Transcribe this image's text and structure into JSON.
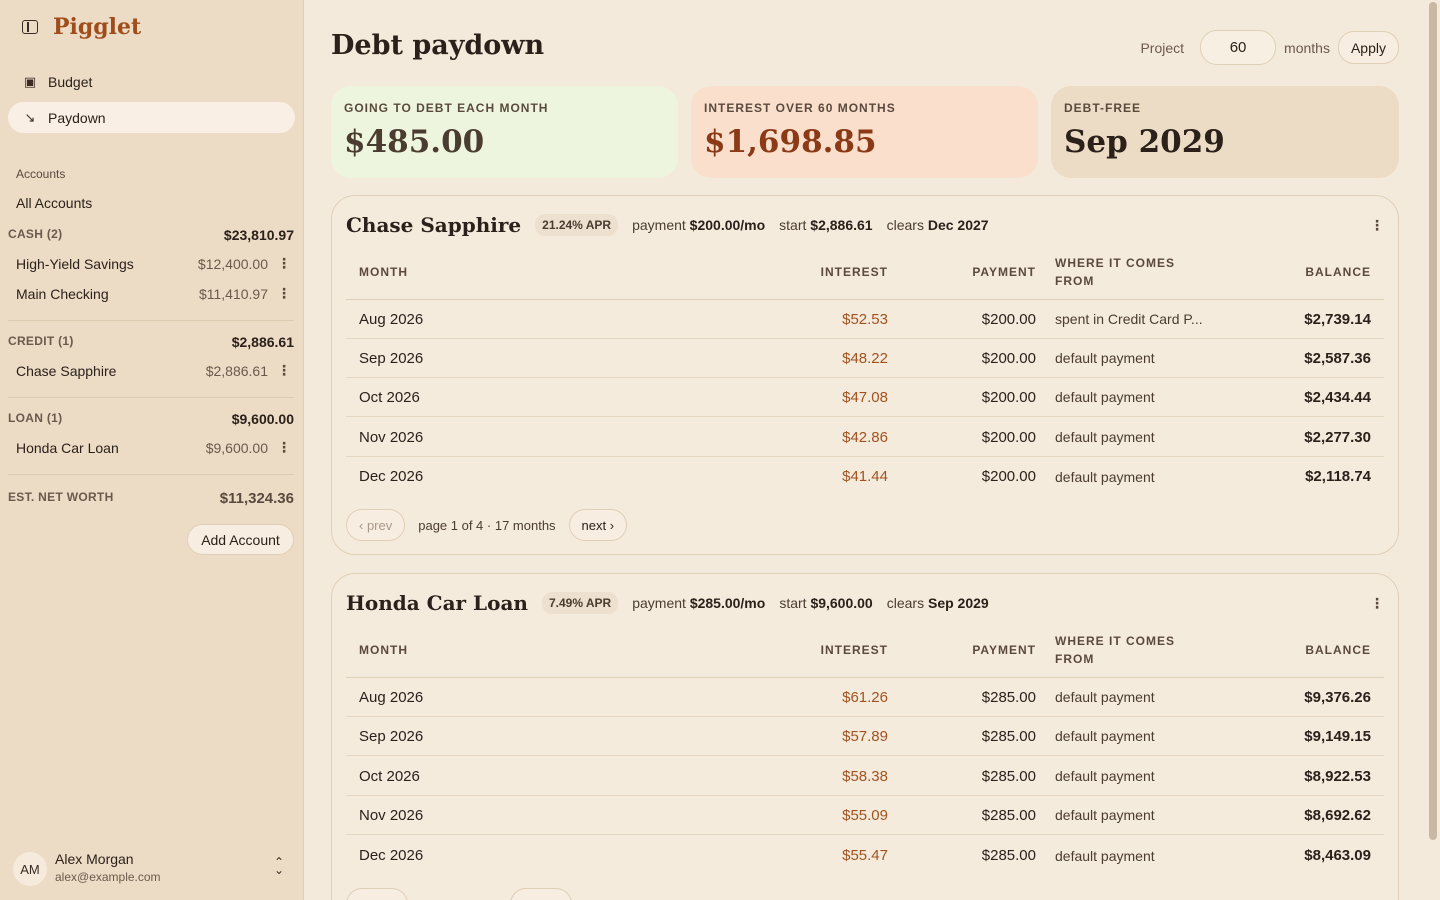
{
  "app": {
    "name": "Pigglet"
  },
  "nav": [
    {
      "label": "Budget",
      "icon": "budget-icon"
    },
    {
      "label": "Paydown",
      "icon": "trend-down-icon",
      "active": true
    }
  ],
  "sidebar": {
    "accounts_label": "Accounts",
    "all_accounts": "All Accounts",
    "groups": [
      {
        "label": "CASH (2)",
        "total": "$23,810.97",
        "items": [
          {
            "name": "High-Yield Savings",
            "amount": "$12,400.00"
          },
          {
            "name": "Main Checking",
            "amount": "$11,410.97"
          }
        ]
      },
      {
        "label": "CREDIT (1)",
        "total": "$2,886.61",
        "items": [
          {
            "name": "Chase Sapphire",
            "amount": "$2,886.61"
          }
        ]
      },
      {
        "label": "LOAN (1)",
        "total": "$9,600.00",
        "items": [
          {
            "name": "Honda Car Loan",
            "amount": "$9,600.00"
          }
        ]
      }
    ],
    "net_worth_label": "EST. NET WORTH",
    "net_worth": "$11,324.36",
    "add_account": "Add Account",
    "user": {
      "initials": "AM",
      "name": "Alex Morgan",
      "email": "alex@example.com"
    }
  },
  "main": {
    "title": "Debt paydown",
    "project": {
      "label": "Project",
      "value": "60",
      "unit": "months",
      "apply": "Apply"
    },
    "cards": [
      {
        "label": "GOING TO DEBT EACH MONTH",
        "value": "$485.00",
        "bg": "#eef5df",
        "color": "#4a3c30"
      },
      {
        "label": "INTEREST OVER 60 MONTHS",
        "value": "$1,698.85",
        "bg": "#fbdfcd",
        "color": "#8a3a16"
      },
      {
        "label": "DEBT-FREE",
        "value": "Sep 2029",
        "bg": "#ecdcc6",
        "color": "#2b211a"
      }
    ],
    "columns": {
      "month": "MONTH",
      "interest": "INTEREST",
      "payment": "PAYMENT",
      "source": "WHERE IT COMES FROM",
      "balance": "BALANCE"
    },
    "debts": [
      {
        "name": "Chase Sapphire",
        "apr": "21.24% APR",
        "payment_label": "payment",
        "payment": "$200.00/mo",
        "start_label": "start",
        "start": "$2,886.61",
        "clears_label": "clears",
        "clears": "Dec 2027",
        "rows": [
          {
            "month": "Aug 2026",
            "interest": "$52.53",
            "payment": "$200.00",
            "source": "spent in Credit Card P...",
            "balance": "$2,739.14"
          },
          {
            "month": "Sep 2026",
            "interest": "$48.22",
            "payment": "$200.00",
            "source": "default payment",
            "balance": "$2,587.36"
          },
          {
            "month": "Oct 2026",
            "interest": "$47.08",
            "payment": "$200.00",
            "source": "default payment",
            "balance": "$2,434.44"
          },
          {
            "month": "Nov 2026",
            "interest": "$42.86",
            "payment": "$200.00",
            "source": "default payment",
            "balance": "$2,277.30"
          },
          {
            "month": "Dec 2026",
            "interest": "$41.44",
            "payment": "$200.00",
            "source": "default payment",
            "balance": "$2,118.74"
          }
        ],
        "pager": {
          "prev": "‹ prev",
          "info": "page 1 of 4 · 17 months",
          "next": "next ›"
        }
      },
      {
        "name": "Honda Car Loan",
        "apr": "7.49% APR",
        "payment_label": "payment",
        "payment": "$285.00/mo",
        "start_label": "start",
        "start": "$9,600.00",
        "clears_label": "clears",
        "clears": "Sep 2029",
        "rows": [
          {
            "month": "Aug 2026",
            "interest": "$61.26",
            "payment": "$285.00",
            "source": "default payment",
            "balance": "$9,376.26"
          },
          {
            "month": "Sep 2026",
            "interest": "$57.89",
            "payment": "$285.00",
            "source": "default payment",
            "balance": "$9,149.15"
          },
          {
            "month": "Oct 2026",
            "interest": "$58.38",
            "payment": "$285.00",
            "source": "default payment",
            "balance": "$8,922.53"
          },
          {
            "month": "Nov 2026",
            "interest": "$55.09",
            "payment": "$285.00",
            "source": "default payment",
            "balance": "$8,692.62"
          },
          {
            "month": "Dec 2026",
            "interest": "$55.47",
            "payment": "$285.00",
            "source": "default payment",
            "balance": "$8,463.09"
          }
        ]
      }
    ]
  }
}
